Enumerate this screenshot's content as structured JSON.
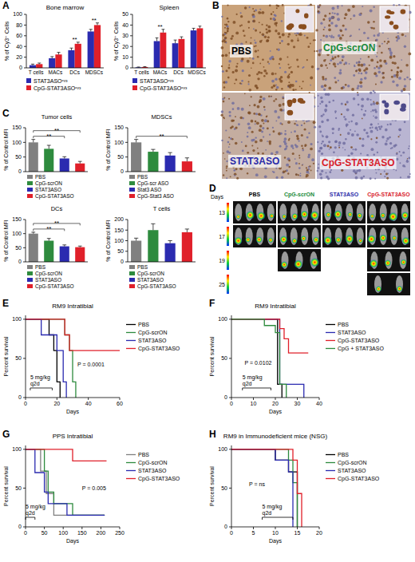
{
  "panel_letters": [
    "A",
    "B",
    "C",
    "D",
    "E",
    "F",
    "G",
    "H"
  ],
  "chart_data": [
    {
      "type": "bar",
      "title": "Bone marrow",
      "ylabel": "% of Cy3⁺ Cells",
      "categories": [
        "T cells",
        "MACs",
        "DCs",
        "MDSCs"
      ],
      "series": [
        {
          "name": "STAT3ASOᶜʸ³",
          "color": "#2b2bb0",
          "values": [
            5,
            18,
            33,
            68
          ],
          "errors": [
            2,
            3,
            4,
            4
          ]
        },
        {
          "name": "CpG-STAT3ASOᶜʸ³",
          "color": "#e0202a",
          "values": [
            7,
            25,
            45,
            80
          ],
          "errors": [
            2,
            4,
            3,
            4
          ]
        }
      ],
      "ylim": [
        0,
        100
      ],
      "yticks": [
        0,
        20,
        40,
        60,
        80,
        100
      ],
      "legend": "bottom",
      "annotations": [
        {
          "text": "**",
          "category": "DCs"
        },
        {
          "text": "**",
          "category": "MDSCs"
        }
      ]
    },
    {
      "type": "bar",
      "title": "Spleen",
      "ylabel": "% of Cy3⁺ Cells",
      "categories": [
        "T cells",
        "MACs",
        "DCs",
        "MDSCs"
      ],
      "series": [
        {
          "name": "STAT3ASOᶜʸ³",
          "color": "#2b2bb0",
          "values": [
            0.5,
            25,
            23,
            35
          ],
          "errors": [
            0.3,
            3,
            3,
            2
          ]
        },
        {
          "name": "CpG-STAT3ASOᶜʸ³",
          "color": "#e0202a",
          "values": [
            0.8,
            33,
            27,
            37
          ],
          "errors": [
            0.3,
            3,
            2,
            2
          ]
        }
      ],
      "ylim": [
        0,
        50
      ],
      "yticks": [
        0,
        10,
        20,
        30,
        40,
        50
      ],
      "legend": "bottom",
      "annotations": [
        {
          "text": "**",
          "category": "MACs"
        }
      ]
    },
    {
      "type": "bar",
      "title": "Tumor cells",
      "ylabel": "% of Control MFI",
      "categories": [
        "PBS",
        "CpG-scrON",
        "STAT3ASO",
        "CpG-STAT3ASO"
      ],
      "values": [
        100,
        78,
        45,
        28
      ],
      "errors": [
        10,
        12,
        6,
        7
      ],
      "colors": [
        "#808080",
        "#2e8b3e",
        "#2b2bb0",
        "#e0202a"
      ],
      "ylim": [
        0,
        150
      ],
      "yticks": [
        0,
        50,
        100,
        150
      ],
      "tick_labels": "y",
      "legend": "bottom",
      "annotations": [
        {
          "text": "**",
          "from": "PBS",
          "to": "STAT3ASO"
        },
        {
          "text": "**",
          "from": "PBS",
          "to": "CpG-STAT3ASO"
        }
      ]
    },
    {
      "type": "bar",
      "title": "MDSCs",
      "ylabel": "% of Control MFI",
      "categories": [
        "PBS",
        "CpG-scr ASO",
        "Stat3 ASO",
        "CpG-Stat3 ASO"
      ],
      "values": [
        100,
        68,
        55,
        35
      ],
      "errors": [
        10,
        8,
        10,
        12
      ],
      "colors": [
        "#808080",
        "#2e8b3e",
        "#2b2bb0",
        "#e0202a"
      ],
      "ylim": [
        0,
        150
      ],
      "yticks": [
        0,
        50,
        100,
        150
      ],
      "tick_labels": "y",
      "legend": "bottom",
      "annotations": [
        {
          "text": "**",
          "from": "PBS",
          "to": "CpG-Stat3 ASO"
        }
      ]
    },
    {
      "type": "bar",
      "title": "DCs",
      "ylabel": "% of Control MFI",
      "categories": [
        "PBS",
        "CpG-scrON",
        "STAT3ASO",
        "CpG-STAT3ASO"
      ],
      "values": [
        100,
        75,
        55,
        52
      ],
      "errors": [
        5,
        8,
        5,
        4
      ],
      "colors": [
        "#808080",
        "#2e8b3e",
        "#2b2bb0",
        "#e0202a"
      ],
      "ylim": [
        0,
        150
      ],
      "yticks": [
        0,
        50,
        100,
        150
      ],
      "tick_labels": "y",
      "legend": "bottom",
      "annotations": [
        {
          "text": "**",
          "from": "PBS",
          "to": "STAT3ASO"
        },
        {
          "text": "**",
          "from": "PBS",
          "to": "CpG-STAT3ASO"
        }
      ]
    },
    {
      "type": "bar",
      "title": "T cells",
      "ylabel": "% of Control MFI",
      "categories": [
        "PBS",
        "CpG-scrON",
        "STAT3ASO",
        "CpG-STAT3ASO"
      ],
      "values": [
        100,
        150,
        88,
        140
      ],
      "errors": [
        12,
        30,
        12,
        15
      ],
      "colors": [
        "#808080",
        "#2e8b3e",
        "#2b2bb0",
        "#e0202a"
      ],
      "ylim": [
        0,
        200
      ],
      "yticks": [
        0,
        50,
        100,
        150,
        200
      ],
      "tick_labels": "y",
      "legend": "bottom"
    },
    {
      "type": "step",
      "title": "RM9 Intratibial",
      "xlabel": "Days",
      "ylabel": "Percent survival",
      "xlim": [
        0,
        60
      ],
      "xticks": [
        0,
        20,
        40,
        60
      ],
      "ylim": [
        0,
        105
      ],
      "yticks": [
        0,
        50,
        100
      ],
      "legend": "right",
      "series": [
        {
          "name": "PBS",
          "color": "#000000",
          "x": [
            0,
            15,
            18,
            20,
            22
          ],
          "values": [
            100,
            80,
            60,
            20,
            0
          ]
        },
        {
          "name": "CpG-scrON",
          "color": "#2e8b3e",
          "x": [
            0,
            25,
            28,
            30,
            32
          ],
          "values": [
            100,
            80,
            60,
            20,
            0
          ]
        },
        {
          "name": "STAT3ASO",
          "color": "#2b2bb0",
          "x": [
            0,
            10,
            20,
            24,
            26
          ],
          "values": [
            100,
            80,
            60,
            20,
            0
          ]
        },
        {
          "name": "CpG-STAT3ASO",
          "color": "#e0202a",
          "x": [
            0,
            25,
            28,
            60
          ],
          "values": [
            100,
            80,
            60,
            60
          ]
        }
      ],
      "annotations": [
        {
          "text": "P = 0.0001"
        }
      ],
      "treatment": {
        "label": "5 mg/kg q2d",
        "start": 3,
        "end": 17
      }
    },
    {
      "type": "step",
      "title": "RM9 Intratibial",
      "xlabel": "Days",
      "ylabel": "Percent survival",
      "xlim": [
        0,
        40
      ],
      "xticks": [
        0,
        10,
        20,
        30,
        40
      ],
      "ylim": [
        0,
        105
      ],
      "yticks": [
        0,
        50,
        100
      ],
      "legend": "right",
      "series": [
        {
          "name": "PBS",
          "color": "#000000",
          "x": [
            0,
            21,
            23
          ],
          "values": [
            100,
            17,
            0
          ]
        },
        {
          "name": "STAT3ASO",
          "color": "#2b2bb0",
          "x": [
            0,
            22,
            33
          ],
          "values": [
            100,
            17,
            0
          ]
        },
        {
          "name": "CpG-STAT3ASO",
          "color": "#e0202a",
          "x": [
            0,
            22,
            24,
            26,
            35
          ],
          "values": [
            100,
            88,
            75,
            57,
            57
          ]
        },
        {
          "name": "CpG + STAT3ASO",
          "color": "#2e8b3e",
          "x": [
            0,
            15,
            20,
            22,
            25
          ],
          "values": [
            100,
            92,
            83,
            17,
            0
          ]
        }
      ],
      "annotations": [
        {
          "text": "P = 0.0102"
        }
      ],
      "treatment": {
        "label": "5 mg/kg q2d",
        "start": 5,
        "end": 18
      }
    },
    {
      "type": "step",
      "title": "PPS Intratibial",
      "xlabel": "Days",
      "ylabel": "Percent survival",
      "xlim": [
        0,
        250
      ],
      "xticks": [
        0,
        50,
        100,
        150,
        200,
        250
      ],
      "ylim": [
        0,
        105
      ],
      "yticks": [
        0,
        50,
        100
      ],
      "legend": "right",
      "series": [
        {
          "name": "PBS",
          "color": "#808080",
          "x": [
            0,
            40,
            55,
            75,
            210
          ],
          "values": [
            100,
            72,
            43,
            15,
            15
          ]
        },
        {
          "name": "CpG-scrON",
          "color": "#2e8b3e",
          "x": [
            0,
            50,
            60,
            75,
            125,
            210
          ],
          "values": [
            100,
            72,
            45,
            30,
            15,
            15
          ]
        },
        {
          "name": "STAT3ASO",
          "color": "#2b2bb0",
          "x": [
            0,
            25,
            50,
            60,
            110,
            210
          ],
          "values": [
            100,
            70,
            45,
            30,
            15,
            15
          ]
        },
        {
          "name": "CpG-STAT3ASO",
          "color": "#e0202a",
          "x": [
            0,
            125,
            215
          ],
          "values": [
            100,
            85,
            85
          ]
        }
      ],
      "annotations": [
        {
          "text": "P = 0.005"
        }
      ],
      "treatment": {
        "label": "5 mg/kg q2d",
        "start": 0,
        "end": 25
      }
    },
    {
      "type": "step",
      "title": "RM9 in Immunodeficient mice (NSG)",
      "xlabel": "Days",
      "ylabel": "Percent survival",
      "xlim": [
        0,
        20
      ],
      "xticks": [
        0,
        5,
        10,
        15,
        20
      ],
      "ylim": [
        0,
        105
      ],
      "yticks": [
        0,
        50,
        100
      ],
      "legend": "right",
      "series": [
        {
          "name": "PBS",
          "color": "#000000",
          "x": [
            0,
            10,
            13,
            15
          ],
          "values": [
            100,
            86,
            71,
            0
          ]
        },
        {
          "name": "CpG-scrON",
          "color": "#2e8b3e",
          "x": [
            0,
            13,
            14,
            15
          ],
          "values": [
            100,
            86,
            57,
            0
          ]
        },
        {
          "name": "STAT3ASO",
          "color": "#2b2bb0",
          "x": [
            0,
            10,
            13,
            14
          ],
          "values": [
            100,
            86,
            71,
            0
          ]
        },
        {
          "name": "CpG-STAT3ASO",
          "color": "#e0202a",
          "x": [
            0,
            14,
            15,
            16
          ],
          "values": [
            100,
            86,
            43,
            0
          ]
        }
      ],
      "annotations": [
        {
          "text": "P = ns"
        }
      ],
      "treatment": {
        "label": "5 mg/kg q2d",
        "start": 7,
        "end": 14
      }
    }
  ],
  "images": [
    {
      "labels": [
        "PBS",
        "CpG-scrON",
        "STAT3ASO",
        "CpG-STAT3ASO"
      ],
      "colors": [
        "#000000",
        "#1a8a3a",
        "#2a2aa8",
        "#d8202a"
      ]
    },
    {
      "header": "Days",
      "groups": [
        "PBS",
        "CpG-scrON",
        "STAT3ASO",
        "CpG-STAT3ASO"
      ],
      "colors": [
        "#000000",
        "#1a8a3a",
        "#2a2aa8",
        "#d8202a"
      ],
      "days": [
        13,
        17,
        19,
        25
      ],
      "present": [
        [
          true,
          true,
          true,
          true
        ],
        [
          true,
          true,
          true,
          true
        ],
        [
          false,
          true,
          false,
          true
        ],
        [
          false,
          false,
          false,
          true
        ]
      ]
    }
  ]
}
